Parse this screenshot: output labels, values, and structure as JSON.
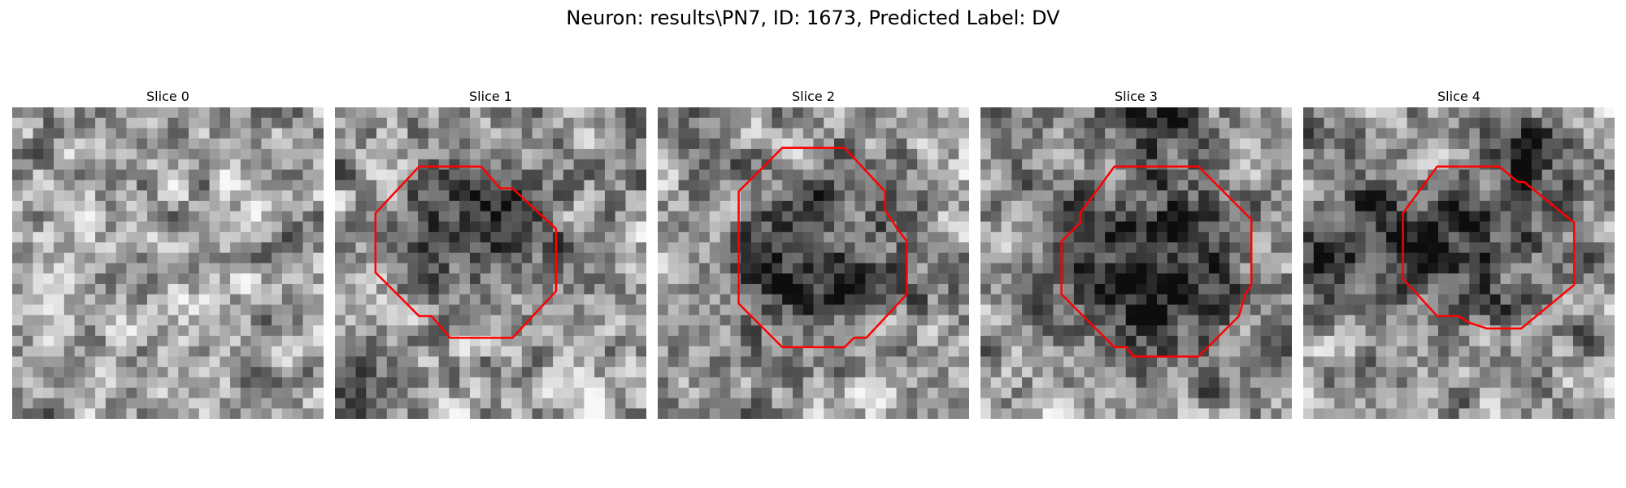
{
  "figure": {
    "title": "Neuron: results\\PN7, ID: 1673, Predicted Label: DV"
  },
  "colors": {
    "contour": "#ff0000",
    "background": "#ffffff"
  },
  "panels": [
    {
      "title": "Slice 0",
      "seed": 11,
      "blobs": [],
      "contour": []
    },
    {
      "title": "Slice 1",
      "seed": 23,
      "blobs": [
        [
          0.45,
          0.38,
          0.22,
          0.45
        ],
        [
          0.1,
          0.9,
          0.12,
          0.2
        ]
      ],
      "contour": [
        [
          0.27,
          0.19
        ],
        [
          0.47,
          0.19
        ],
        [
          0.53,
          0.26
        ],
        [
          0.57,
          0.26
        ],
        [
          0.71,
          0.39
        ],
        [
          0.71,
          0.59
        ],
        [
          0.57,
          0.74
        ],
        [
          0.37,
          0.74
        ],
        [
          0.31,
          0.67
        ],
        [
          0.27,
          0.67
        ],
        [
          0.13,
          0.53
        ],
        [
          0.13,
          0.34
        ]
      ]
    },
    {
      "title": "Slice 2",
      "seed": 37,
      "blobs": [
        [
          0.5,
          0.5,
          0.3,
          0.42
        ]
      ],
      "contour": [
        [
          0.4,
          0.13
        ],
        [
          0.6,
          0.13
        ],
        [
          0.73,
          0.27
        ],
        [
          0.73,
          0.33
        ],
        [
          0.77,
          0.39
        ],
        [
          0.8,
          0.43
        ],
        [
          0.8,
          0.6
        ],
        [
          0.67,
          0.74
        ],
        [
          0.63,
          0.74
        ],
        [
          0.6,
          0.77
        ],
        [
          0.4,
          0.77
        ],
        [
          0.26,
          0.63
        ],
        [
          0.26,
          0.27
        ]
      ]
    },
    {
      "title": "Slice 3",
      "seed": 53,
      "blobs": [
        [
          0.55,
          0.5,
          0.32,
          0.5
        ],
        [
          0.6,
          0.05,
          0.12,
          0.35
        ]
      ],
      "contour": [
        [
          0.43,
          0.19
        ],
        [
          0.7,
          0.19
        ],
        [
          0.87,
          0.36
        ],
        [
          0.87,
          0.57
        ],
        [
          0.85,
          0.6
        ],
        [
          0.83,
          0.67
        ],
        [
          0.7,
          0.8
        ],
        [
          0.49,
          0.8
        ],
        [
          0.47,
          0.77
        ],
        [
          0.43,
          0.77
        ],
        [
          0.26,
          0.6
        ],
        [
          0.26,
          0.43
        ],
        [
          0.32,
          0.37
        ],
        [
          0.32,
          0.34
        ]
      ]
    },
    {
      "title": "Slice 4",
      "seed": 71,
      "blobs": [
        [
          0.55,
          0.45,
          0.25,
          0.45
        ],
        [
          0.15,
          0.45,
          0.18,
          0.5
        ],
        [
          0.72,
          0.13,
          0.12,
          0.5
        ]
      ],
      "contour": [
        [
          0.43,
          0.19
        ],
        [
          0.63,
          0.19
        ],
        [
          0.69,
          0.24
        ],
        [
          0.71,
          0.24
        ],
        [
          0.87,
          0.37
        ],
        [
          0.87,
          0.57
        ],
        [
          0.7,
          0.71
        ],
        [
          0.59,
          0.71
        ],
        [
          0.53,
          0.69
        ],
        [
          0.5,
          0.67
        ],
        [
          0.43,
          0.67
        ],
        [
          0.32,
          0.55
        ],
        [
          0.32,
          0.34
        ]
      ]
    }
  ]
}
